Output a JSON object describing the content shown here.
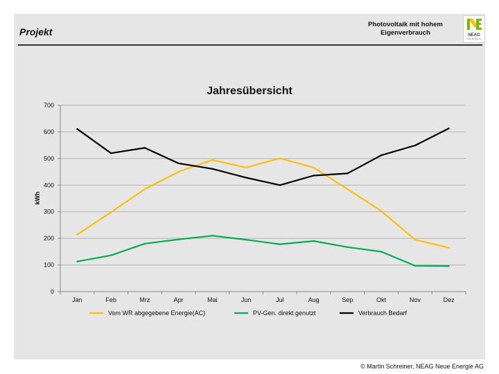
{
  "slide": {
    "title": "Projekt",
    "subtitle_line1": "Photovoltaik mit hohem",
    "subtitle_line2": "Eigenverbrauch",
    "logo_text": "NEAG",
    "logo_sub": "Neue Energie AG",
    "copyright": "© Martin Schreiner, NEAG Neue Energie AG"
  },
  "colors": {
    "background": "#e6e6e6",
    "grid": "#b3b3b3",
    "yellow": "#ffc000",
    "green": "#00b050",
    "black": "#000000",
    "logo_green": "#7ab800",
    "logo_yellow": "#f5c400"
  },
  "chart_data": {
    "type": "line",
    "title": "Jahresübersicht",
    "xlabel": "",
    "ylabel": "kWh",
    "ylim": [
      0,
      700
    ],
    "yticks": [
      0,
      100,
      200,
      300,
      400,
      500,
      600,
      700
    ],
    "grid": true,
    "legend_position": "bottom",
    "categories": [
      "Jan",
      "Feb",
      "Mrz",
      "Apr",
      "Mai",
      "Jun",
      "Jul",
      "Aug",
      "Sep",
      "Okt",
      "Nov",
      "Dez"
    ],
    "series": [
      {
        "name": "Vom WR abgegebene Energie(AC)",
        "color": "#ffc000",
        "values": [
          214,
          298,
          385,
          450,
          495,
          466,
          501,
          466,
          385,
          303,
          195,
          165
        ]
      },
      {
        "name": "PV-Gen. direkt genutzt",
        "color": "#00b050",
        "values": [
          113,
          136,
          180,
          196,
          210,
          195,
          178,
          190,
          167,
          150,
          97,
          96
        ]
      },
      {
        "name": "Verbrauch Bedarf",
        "color": "#000000",
        "values": [
          611,
          520,
          540,
          482,
          461,
          428,
          400,
          436,
          444,
          512,
          549,
          613
        ]
      }
    ]
  }
}
